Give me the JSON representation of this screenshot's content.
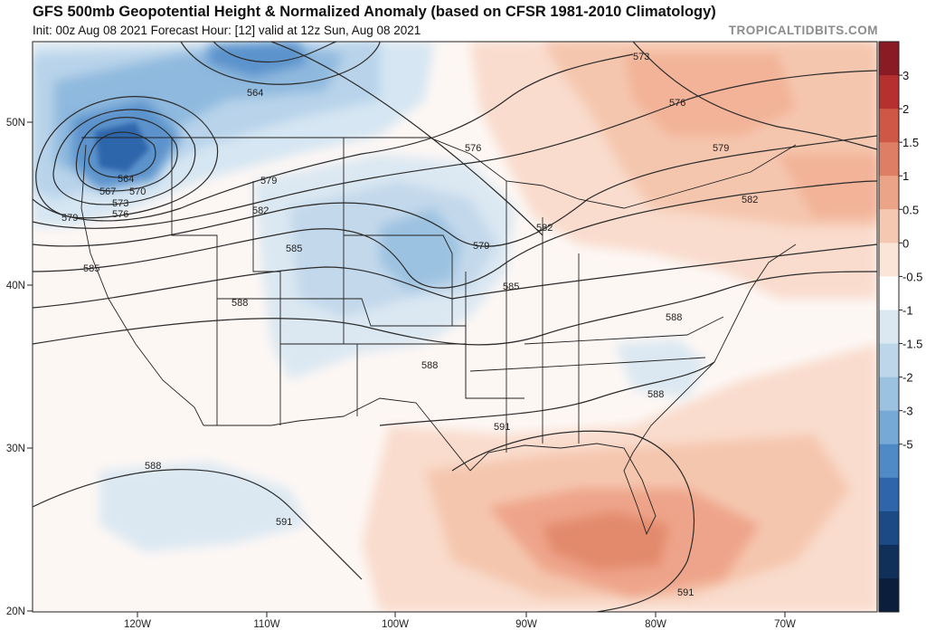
{
  "header": {
    "title": "GFS 500mb Geopotential Height & Normalized Anomaly (based on CFSR 1981-2010 Climatology)",
    "subtitle": "Init: 00z Aug 08 2021   Forecast Hour: [12]   valid at 12z Sun, Aug 08 2021",
    "brand": "TROPICALTIDBITS.COM"
  },
  "axes": {
    "lat_labels": [
      "50N",
      "40N",
      "30N",
      "20N"
    ],
    "lon_labels": [
      "120W",
      "110W",
      "100W",
      "90W",
      "80W",
      "70W"
    ]
  },
  "colorbar": {
    "tick_labels": [
      "3",
      "2",
      "1.5",
      "1",
      "0.5",
      "0",
      "-0.5",
      "-1",
      "-1.5",
      "-2",
      "-3",
      "-5"
    ],
    "colors": [
      "#8a1a23",
      "#b5302f",
      "#cf5745",
      "#de7e64",
      "#eba487",
      "#f5c9b1",
      "#fbe5d9",
      "#ffffff",
      "#dbe8f2",
      "#bed6ea",
      "#9cc2e1",
      "#76a9d6",
      "#4f8ac7",
      "#2f66ab",
      "#1b4a85",
      "#10305a",
      "#0b1f3d"
    ]
  },
  "contours": {
    "labels": [
      "573",
      "576",
      "579",
      "582",
      "564",
      "576",
      "579",
      "582",
      "564",
      "567",
      "570",
      "573",
      "576",
      "579",
      "579",
      "582",
      "585",
      "585",
      "585",
      "588",
      "588",
      "588",
      "588",
      "588",
      "591",
      "591",
      "591"
    ]
  },
  "colors": {
    "warm_anomaly": "#f3b79a",
    "cold_anomaly": "#9cc2e1",
    "ocean": "#ffffff",
    "borders": "#222222"
  }
}
